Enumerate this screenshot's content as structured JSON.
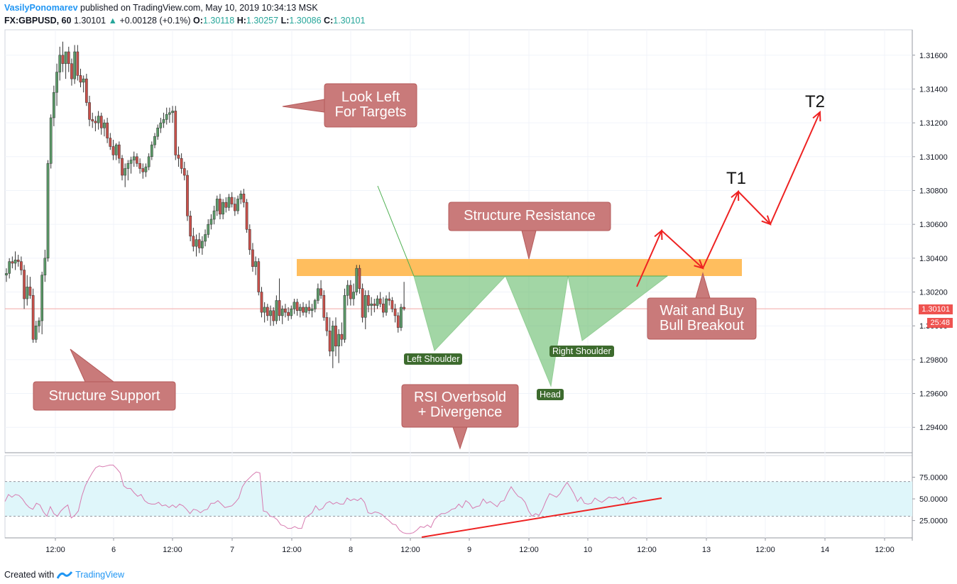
{
  "header": {
    "author": "VasilyPonomarev",
    "published": "published on TradingView.com, May 10, 2019 10:34:13 MSK",
    "symbol": "FX:GBPUSD, 60",
    "last": "1.30101",
    "change": "+0.00128 (+0.1%)",
    "open_label": "O:",
    "open": "1.30118",
    "high_label": "H:",
    "high": "1.30257",
    "low_label": "L:",
    "low": "1.30086",
    "close_label": "C:",
    "close": "1.30101"
  },
  "footer": {
    "created_with": "Created with",
    "brand": "TradingView"
  },
  "price_tag": {
    "value": "1.30101",
    "timer": "25:48"
  },
  "annotations": {
    "structure_support": "Structure Support",
    "look_left": "Look Left\nFor Targets",
    "structure_resistance": "Structure Resistance",
    "wait_buy": "Wait and Buy\nBull Breakout",
    "rsi_note": "RSI Overbsold\n+ Divergence",
    "left_shoulder": "Left Shoulder",
    "head": "Head",
    "right_shoulder": "Right Shoulder",
    "t1": "T1",
    "t2": "T2"
  },
  "colors": {
    "bull": "#5b9a68",
    "bear": "#c9504a",
    "callout": "#c97a7a",
    "zone": "#ffb74d",
    "pattern": "#66bb6a",
    "arrow": "#ee2222",
    "rsi_line": "#d77bb0",
    "rsi_band": "#dff6fa"
  },
  "chart_data": [
    {
      "type": "candlestick",
      "title": "FX:GBPUSD, 60",
      "yaxis_ticks": [
        1.316,
        1.314,
        1.312,
        1.31,
        1.308,
        1.306,
        1.304,
        1.302,
        1.3,
        1.298,
        1.296,
        1.294
      ],
      "ylim": [
        1.2925,
        1.3175
      ],
      "xaxis_ticks": [
        "12:00",
        "6",
        "12:00",
        "7",
        "12:00",
        "8",
        "12:00",
        "9",
        "12:00",
        "10",
        "12:00",
        "13",
        "12:00",
        "14",
        "12:00"
      ],
      "grid": true,
      "current_price": 1.30101,
      "candles": [
        [
          1.303,
          1.3034,
          1.3026,
          1.3031
        ],
        [
          1.3031,
          1.304,
          1.3028,
          1.3038
        ],
        [
          1.3038,
          1.3041,
          1.3034,
          1.3037
        ],
        [
          1.3037,
          1.3044,
          1.3033,
          1.3039
        ],
        [
          1.3039,
          1.3042,
          1.3035,
          1.3038
        ],
        [
          1.3038,
          1.3041,
          1.303,
          1.3033
        ],
        [
          1.3033,
          1.3036,
          1.301,
          1.3016
        ],
        [
          1.3016,
          1.303,
          1.3012,
          1.3023
        ],
        [
          1.3023,
          1.3029,
          1.3016,
          1.3018
        ],
        [
          1.3018,
          1.3022,
          1.299,
          1.2992
        ],
        [
          1.2992,
          1.3003,
          1.299,
          1.3
        ],
        [
          1.3,
          1.3005,
          1.2996,
          1.3003
        ],
        [
          1.3003,
          1.3032,
          1.2995,
          1.303
        ],
        [
          1.303,
          1.3045,
          1.3026,
          1.304
        ],
        [
          1.304,
          1.3098,
          1.3038,
          1.3096
        ],
        [
          1.3096,
          1.3125,
          1.3093,
          1.3123
        ],
        [
          1.3123,
          1.3142,
          1.3118,
          1.3138
        ],
        [
          1.3138,
          1.3155,
          1.313,
          1.315
        ],
        [
          1.315,
          1.3165,
          1.3145,
          1.316
        ],
        [
          1.316,
          1.3168,
          1.315,
          1.3155
        ],
        [
          1.3155,
          1.3162,
          1.3146,
          1.3162
        ],
        [
          1.3162,
          1.3165,
          1.315,
          1.3155
        ],
        [
          1.3155,
          1.3158,
          1.3142,
          1.3146
        ],
        [
          1.3146,
          1.3166,
          1.3143,
          1.3162
        ],
        [
          1.3162,
          1.3166,
          1.3145,
          1.3148
        ],
        [
          1.3148,
          1.3152,
          1.3141,
          1.3144
        ],
        [
          1.3144,
          1.3148,
          1.3138,
          1.3146
        ],
        [
          1.3146,
          1.3149,
          1.313,
          1.3132
        ],
        [
          1.3132,
          1.3136,
          1.3118,
          1.3122
        ],
        [
          1.3122,
          1.3126,
          1.3117,
          1.3121
        ],
        [
          1.3121,
          1.3124,
          1.3115,
          1.312
        ],
        [
          1.312,
          1.3127,
          1.3116,
          1.3124
        ],
        [
          1.3124,
          1.3126,
          1.3113,
          1.3117
        ],
        [
          1.3117,
          1.3122,
          1.3112,
          1.312
        ],
        [
          1.312,
          1.3123,
          1.3108,
          1.3111
        ],
        [
          1.3111,
          1.3114,
          1.3104,
          1.3106
        ],
        [
          1.3106,
          1.311,
          1.3098,
          1.3101
        ],
        [
          1.3101,
          1.3108,
          1.3098,
          1.3107
        ],
        [
          1.3107,
          1.3109,
          1.3096,
          1.3099
        ],
        [
          1.3099,
          1.3101,
          1.3086,
          1.3089
        ],
        [
          1.3089,
          1.3096,
          1.3082,
          1.3093
        ],
        [
          1.3093,
          1.3098,
          1.3086,
          1.3096
        ],
        [
          1.3096,
          1.31,
          1.309,
          1.3098
        ],
        [
          1.3098,
          1.3103,
          1.3094,
          1.31
        ],
        [
          1.31,
          1.3102,
          1.3094,
          1.3096
        ],
        [
          1.3096,
          1.3099,
          1.309,
          1.3093
        ],
        [
          1.3093,
          1.3096,
          1.3087,
          1.3091
        ],
        [
          1.3091,
          1.3096,
          1.3088,
          1.3094
        ],
        [
          1.3094,
          1.3102,
          1.3092,
          1.31
        ],
        [
          1.31,
          1.3109,
          1.3098,
          1.3107
        ],
        [
          1.3107,
          1.3114,
          1.3105,
          1.3112
        ],
        [
          1.3112,
          1.3119,
          1.311,
          1.3117
        ],
        [
          1.3117,
          1.3123,
          1.3114,
          1.312
        ],
        [
          1.312,
          1.3126,
          1.3117,
          1.3122
        ],
        [
          1.3122,
          1.3129,
          1.3119,
          1.3125
        ],
        [
          1.3125,
          1.3129,
          1.312,
          1.3126
        ],
        [
          1.3126,
          1.313,
          1.312,
          1.3127
        ],
        [
          1.3127,
          1.313,
          1.3098,
          1.3101
        ],
        [
          1.3101,
          1.3106,
          1.3094,
          1.3099
        ],
        [
          1.3099,
          1.3102,
          1.309,
          1.3093
        ],
        [
          1.3093,
          1.3097,
          1.3086,
          1.3089
        ],
        [
          1.3089,
          1.3092,
          1.3062,
          1.3065
        ],
        [
          1.3065,
          1.3068,
          1.305,
          1.3053
        ],
        [
          1.3053,
          1.3058,
          1.3044,
          1.3047
        ],
        [
          1.3047,
          1.3054,
          1.3041,
          1.3051
        ],
        [
          1.3051,
          1.3055,
          1.3043,
          1.3046
        ],
        [
          1.3046,
          1.3053,
          1.3042,
          1.305
        ],
        [
          1.305,
          1.3057,
          1.3047,
          1.3054
        ],
        [
          1.3054,
          1.3063,
          1.3052,
          1.306
        ],
        [
          1.306,
          1.3066,
          1.3057,
          1.3063
        ],
        [
          1.3063,
          1.3071,
          1.306,
          1.3068
        ],
        [
          1.3068,
          1.3077,
          1.3065,
          1.3075
        ],
        [
          1.3075,
          1.3078,
          1.3063,
          1.3066
        ],
        [
          1.3066,
          1.3075,
          1.3063,
          1.3073
        ],
        [
          1.3073,
          1.3076,
          1.3067,
          1.307
        ],
        [
          1.307,
          1.3078,
          1.3068,
          1.3076
        ],
        [
          1.3076,
          1.3079,
          1.307,
          1.3072
        ],
        [
          1.3072,
          1.3076,
          1.3065,
          1.3068
        ],
        [
          1.3068,
          1.3077,
          1.3066,
          1.3075
        ],
        [
          1.3075,
          1.308,
          1.3072,
          1.3078
        ],
        [
          1.3078,
          1.3081,
          1.307,
          1.3073
        ],
        [
          1.3073,
          1.3075,
          1.3055,
          1.3057
        ],
        [
          1.3057,
          1.306,
          1.3042,
          1.3045
        ],
        [
          1.3045,
          1.3049,
          1.3032,
          1.3035
        ],
        [
          1.3035,
          1.3041,
          1.303,
          1.3038
        ],
        [
          1.3038,
          1.304,
          1.3018,
          1.302
        ],
        [
          1.302,
          1.3023,
          1.3005,
          1.3008
        ],
        [
          1.3008,
          1.3014,
          1.3002,
          1.3011
        ],
        [
          1.3011,
          1.3013,
          1.3003,
          1.3006
        ],
        [
          1.3006,
          1.3012,
          1.3,
          1.3009
        ],
        [
          1.3009,
          1.3011,
          1.3,
          1.3003
        ],
        [
          1.3003,
          1.3018,
          1.3001,
          1.3015
        ],
        [
          1.3015,
          1.3028,
          1.3003,
          1.3006
        ],
        [
          1.3006,
          1.3012,
          1.3001,
          1.301
        ],
        [
          1.301,
          1.3013,
          1.3005,
          1.3008
        ],
        [
          1.3008,
          1.3011,
          1.3003,
          1.3006
        ],
        [
          1.3006,
          1.3012,
          1.3004,
          1.301
        ],
        [
          1.301,
          1.3016,
          1.3007,
          1.3014
        ],
        [
          1.3014,
          1.3016,
          1.3006,
          1.3009
        ],
        [
          1.3009,
          1.3013,
          1.3005,
          1.3011
        ],
        [
          1.3011,
          1.3014,
          1.3006,
          1.3008
        ],
        [
          1.3008,
          1.3013,
          1.3005,
          1.3011
        ],
        [
          1.3011,
          1.3015,
          1.3007,
          1.3009
        ],
        [
          1.3009,
          1.3013,
          1.3005,
          1.301
        ],
        [
          1.301,
          1.3016,
          1.3008,
          1.3015
        ],
        [
          1.3015,
          1.3025,
          1.3013,
          1.3022
        ],
        [
          1.3022,
          1.3027,
          1.3016,
          1.3018
        ],
        [
          1.3018,
          1.3021,
          1.3003,
          1.3005
        ],
        [
          1.3005,
          1.3008,
          1.2994,
          1.2997
        ],
        [
          1.2997,
          1.3005,
          1.2982,
          1.2985
        ],
        [
          1.2985,
          1.3003,
          1.2975,
          1.3
        ],
        [
          1.3,
          1.3005,
          1.2982,
          1.2988
        ],
        [
          1.2988,
          1.2998,
          1.2978,
          1.2995
        ],
        [
          1.2995,
          1.3002,
          1.2988,
          1.2992
        ],
        [
          1.2992,
          1.3022,
          1.299,
          1.3018
        ],
        [
          1.3018,
          1.3027,
          1.3012,
          1.3024
        ],
        [
          1.3024,
          1.3027,
          1.3012,
          1.3016
        ],
        [
          1.3016,
          1.3025,
          1.3012,
          1.302
        ],
        [
          1.302,
          1.3036,
          1.3018,
          1.3034
        ],
        [
          1.3034,
          1.3036,
          1.3019,
          1.3022
        ],
        [
          1.3022,
          1.3025,
          1.3002,
          1.3005
        ],
        [
          1.3005,
          1.3021,
          1.2998,
          1.3018
        ],
        [
          1.3018,
          1.3021,
          1.3008,
          1.3012
        ],
        [
          1.3012,
          1.3017,
          1.3006,
          1.3013
        ],
        [
          1.3013,
          1.3016,
          1.3008,
          1.3012
        ],
        [
          1.3012,
          1.3018,
          1.301,
          1.3016
        ],
        [
          1.3016,
          1.302,
          1.3011,
          1.3013
        ],
        [
          1.3013,
          1.3017,
          1.3005,
          1.3008
        ],
        [
          1.3008,
          1.3018,
          1.3006,
          1.3016
        ],
        [
          1.3016,
          1.302,
          1.3012,
          1.3015
        ],
        [
          1.3015,
          1.3017,
          1.3008,
          1.301
        ],
        [
          1.301,
          1.3013,
          1.3002,
          1.3006
        ],
        [
          1.3006,
          1.3008,
          1.2996,
          1.2999
        ],
        [
          1.2999,
          1.3013,
          1.2997,
          1.3011
        ],
        [
          1.3011,
          1.3026,
          1.3009,
          1.301
        ]
      ]
    },
    {
      "type": "line",
      "title": "RSI",
      "yaxis_ticks": [
        75.0,
        50.0,
        25.0
      ],
      "ylim": [
        5,
        100
      ],
      "bands": [
        30,
        70
      ],
      "values": [
        47,
        55,
        52,
        55,
        54,
        50,
        44,
        40,
        38,
        45,
        43,
        35,
        30,
        41,
        33,
        30,
        36,
        40,
        43,
        28,
        31,
        36,
        53,
        65,
        73,
        80,
        86,
        88,
        87,
        88,
        89,
        89,
        85,
        80,
        65,
        62,
        62,
        57,
        53,
        55,
        48,
        45,
        44,
        44,
        46,
        42,
        43,
        40,
        43,
        40,
        44,
        42,
        38,
        33,
        38,
        37,
        34,
        37,
        38,
        45,
        45,
        48,
        44,
        40,
        41,
        42,
        46,
        51,
        64,
        70,
        74,
        78,
        81,
        80,
        36,
        35,
        30,
        29,
        26,
        20,
        19,
        16,
        16,
        18,
        16,
        16,
        28,
        31,
        34,
        42,
        37,
        39,
        45,
        47,
        44,
        46,
        44,
        44,
        51,
        48,
        50,
        48,
        51,
        46,
        34,
        33,
        35,
        34,
        32,
        28,
        25,
        21,
        20,
        14,
        11,
        10,
        10,
        11,
        14,
        18,
        17,
        20,
        17,
        26,
        30,
        33,
        33,
        35,
        38,
        39,
        44,
        40,
        48,
        45,
        39,
        41,
        42,
        50,
        45,
        47,
        44,
        41,
        47,
        48,
        57,
        64,
        58,
        53,
        51,
        46,
        36,
        30,
        33,
        31,
        38,
        48,
        56,
        54,
        52,
        56,
        63,
        69,
        63,
        56,
        47,
        52,
        45,
        44,
        45,
        51,
        48,
        46,
        49,
        52,
        51,
        52,
        49,
        52,
        44,
        49,
        52,
        50
      ],
      "divergence_line": [
        [
          594,
          757
        ],
        [
          932,
          702
        ]
      ],
      "divergence_line_label": ""
    }
  ]
}
